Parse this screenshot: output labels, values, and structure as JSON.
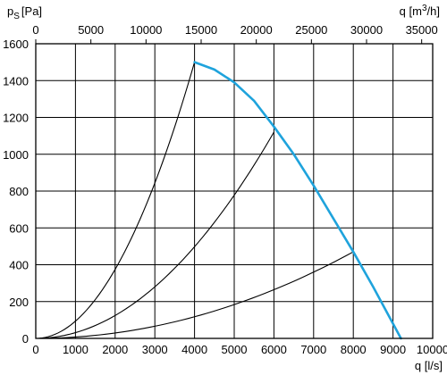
{
  "chart_data": {
    "type": "line",
    "ylabel_main": "p",
    "ylabel_sub": "S",
    "ylabel_unit": "[Pa]",
    "xlabel_bottom": "q [l/s]",
    "xlabel_top_main": "q [m",
    "xlabel_top_sup": "3",
    "xlabel_top_end": "/h]",
    "x_bottom_range": [
      0,
      10000
    ],
    "x_top_range": [
      0,
      36000
    ],
    "y_range": [
      0,
      1600
    ],
    "x_bottom_ticks": [
      "0",
      "1000",
      "2000",
      "3000",
      "4000",
      "5000",
      "6000",
      "7000",
      "8000",
      "9000",
      "10000"
    ],
    "x_top_ticks": [
      "0",
      "5000",
      "10000",
      "15000",
      "20000",
      "25000",
      "30000",
      "35000"
    ],
    "y_ticks": [
      "0",
      "200",
      "400",
      "600",
      "800",
      "1000",
      "1200",
      "1400",
      "1600"
    ],
    "grid": true,
    "fan_curve": {
      "color": "#1fa3dc",
      "points": [
        [
          4000,
          1500
        ],
        [
          4500,
          1460
        ],
        [
          5000,
          1390
        ],
        [
          5500,
          1290
        ],
        [
          6000,
          1150
        ],
        [
          6500,
          1000
        ],
        [
          7000,
          830
        ],
        [
          7500,
          650
        ],
        [
          8000,
          470
        ],
        [
          8500,
          280
        ],
        [
          9000,
          80
        ],
        [
          9200,
          0
        ]
      ]
    },
    "system_curves": [
      {
        "x_end": 4000,
        "y_end": 1500
      },
      {
        "x_end": 6000,
        "y_end": 1120
      },
      {
        "x_end": 8000,
        "y_end": 470
      }
    ]
  }
}
